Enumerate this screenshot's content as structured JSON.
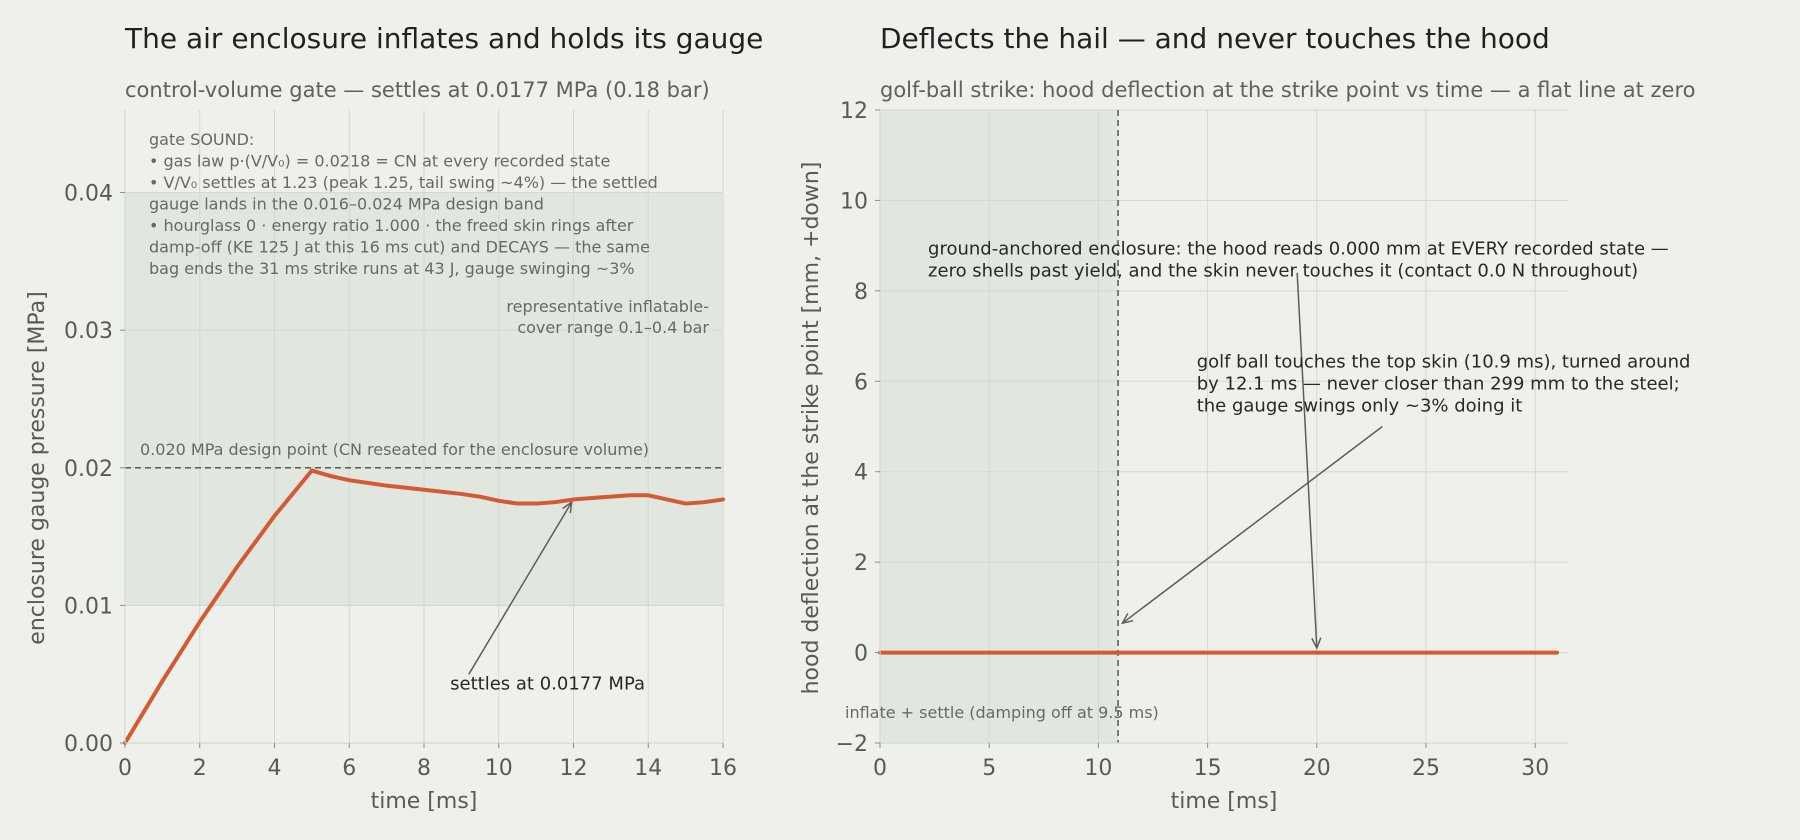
{
  "colors": {
    "background": "#eef0eb",
    "band": "#e1e7de",
    "grid": "#d3d8cf",
    "line": "#d35a32",
    "title": "#1f231f",
    "subtitle": "#5d625d",
    "text": "#575b57",
    "annotation": "#666a66",
    "arrow": "#5a5e5a"
  },
  "chart_data": [
    {
      "type": "line",
      "title": "The air enclosure inflates and holds its gauge",
      "subtitle": "control-volume gate — settles at 0.0177 MPa (0.18 bar)",
      "xlabel": "time  [ms]",
      "ylabel": "enclosure gauge pressure  [MPa]",
      "xlim": [
        0,
        16
      ],
      "ylim": [
        0,
        0.046
      ],
      "xticks": [
        0,
        2,
        4,
        6,
        8,
        10,
        12,
        14,
        16
      ],
      "xtick_labels": [
        "0",
        "2",
        "4",
        "6",
        "8",
        "10",
        "12",
        "14",
        "16"
      ],
      "yticks": [
        0.0,
        0.01,
        0.02,
        0.03,
        0.04
      ],
      "ytick_labels": [
        "0.00",
        "0.01",
        "0.02",
        "0.03",
        "0.04"
      ],
      "grid": true,
      "series": [
        {
          "x": [
            0,
            1,
            2,
            3,
            4,
            5,
            5.5,
            6,
            7,
            8,
            9,
            9.5,
            10,
            10.5,
            11,
            11.5,
            12,
            12.5,
            13,
            13.5,
            14,
            14.5,
            15,
            15.5,
            16
          ],
          "y": [
            0,
            0.0045,
            0.0088,
            0.0128,
            0.0165,
            0.0198,
            0.0194,
            0.0191,
            0.0187,
            0.0184,
            0.0181,
            0.0179,
            0.0176,
            0.0174,
            0.0174,
            0.0175,
            0.0177,
            0.0178,
            0.0179,
            0.018,
            0.018,
            0.0177,
            0.0174,
            0.0175,
            0.0177
          ]
        }
      ],
      "band": {
        "y0": 0.01,
        "y1": 0.04,
        "label": "representative inflatable-\ncover range 0.1–0.4 bar"
      },
      "reference_line": {
        "y": 0.02,
        "label": "0.020 MPa design point (CN reseated for the enclosure volume)"
      },
      "notes": "gate SOUND:\n• gas law p·(V/V₀) = 0.0218 = CN at every recorded state\n• V/V₀ settles at 1.23 (peak 1.25, tail swing ~4%) — the settled\n   gauge lands in the 0.016–0.024 MPa design band\n• hourglass 0 · energy ratio 1.000 · the freed skin rings after\n   damp-off (KE 125 J at this 16 ms cut) and DECAYS — the same\n   bag ends the 31 ms strike runs at 43 J, gauge swinging ~3%",
      "annotations": [
        {
          "text": "settles at 0.0177 MPa",
          "text_x": 8.7,
          "text_y": 0.0039,
          "arrow_from_x": 9.2,
          "arrow_from_y": 0.005,
          "arrow_to_x": 11.95,
          "arrow_to_y": 0.0175
        }
      ]
    },
    {
      "type": "line",
      "title": "Deflects the hail — and never touches the hood",
      "subtitle": "golf-ball strike: hood deflection at the strike point vs time — a flat line at zero",
      "xlabel": "time  [ms]",
      "ylabel": "hood deflection at the strike point  [mm, +down]",
      "xlim": [
        0,
        31.5
      ],
      "ylim": [
        -2,
        12
      ],
      "xticks": [
        0,
        5,
        10,
        15,
        20,
        25,
        30
      ],
      "xtick_labels": [
        "0",
        "5",
        "10",
        "15",
        "20",
        "25",
        "30"
      ],
      "yticks": [
        -2,
        0,
        2,
        4,
        6,
        8,
        10,
        12
      ],
      "ytick_labels": [
        "−2",
        "0",
        "2",
        "4",
        "6",
        "8",
        "10",
        "12"
      ],
      "grid": true,
      "series": [
        {
          "x": [
            0,
            31
          ],
          "y": [
            0,
            0
          ]
        }
      ],
      "shaded_region": {
        "x0": 0,
        "x1": 10.9,
        "label": "inflate + settle (damping off at 9.5 ms)"
      },
      "vertical_line": {
        "x": 10.9
      },
      "annotations": [
        {
          "text": "ground-anchored enclosure: the hood reads 0.000 mm at EVERY recorded state —\nzero shells past yield, and the skin never touches it (contact 0.0 N throughout)",
          "text_x": 2.2,
          "text_y": 8.8,
          "arrow_from_x": 19.1,
          "arrow_from_y": 8.4,
          "arrow_to_x": 20.0,
          "arrow_to_y": 0.1
        },
        {
          "text": "golf ball touches the top skin (10.9 ms), turned around\nby 12.1 ms — never closer than 299 mm to the steel;\nthe gauge swings only ~3% doing it",
          "text_x": 14.5,
          "text_y": 6.3,
          "arrow_from_x": 23.0,
          "arrow_from_y": 5.0,
          "arrow_to_x": 11.1,
          "arrow_to_y": 0.65
        }
      ]
    }
  ]
}
